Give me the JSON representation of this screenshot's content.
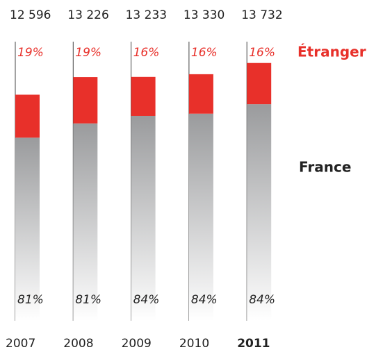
{
  "chart_data": {
    "type": "bar",
    "categories": [
      "2007",
      "2008",
      "2009",
      "2010",
      "2011"
    ],
    "values": [
      12596,
      13226,
      13233,
      13330,
      13732
    ],
    "value_labels": [
      "12 596",
      "13 226",
      "13 233",
      "13 330",
      "13 732"
    ],
    "ylim": [
      4500,
      13750
    ],
    "series": [
      {
        "name": "France",
        "color": "#9a9b9d",
        "values": [
          81,
          81,
          84,
          84,
          84
        ],
        "value_labels": [
          "81%",
          "81%",
          "84%",
          "84%",
          "84%"
        ]
      },
      {
        "name": "Étranger",
        "color": "#e8302a",
        "values": [
          19,
          19,
          16,
          16,
          16
        ],
        "value_labels": [
          "19%",
          "19%",
          "16%",
          "16%",
          "16%"
        ]
      }
    ]
  }
}
